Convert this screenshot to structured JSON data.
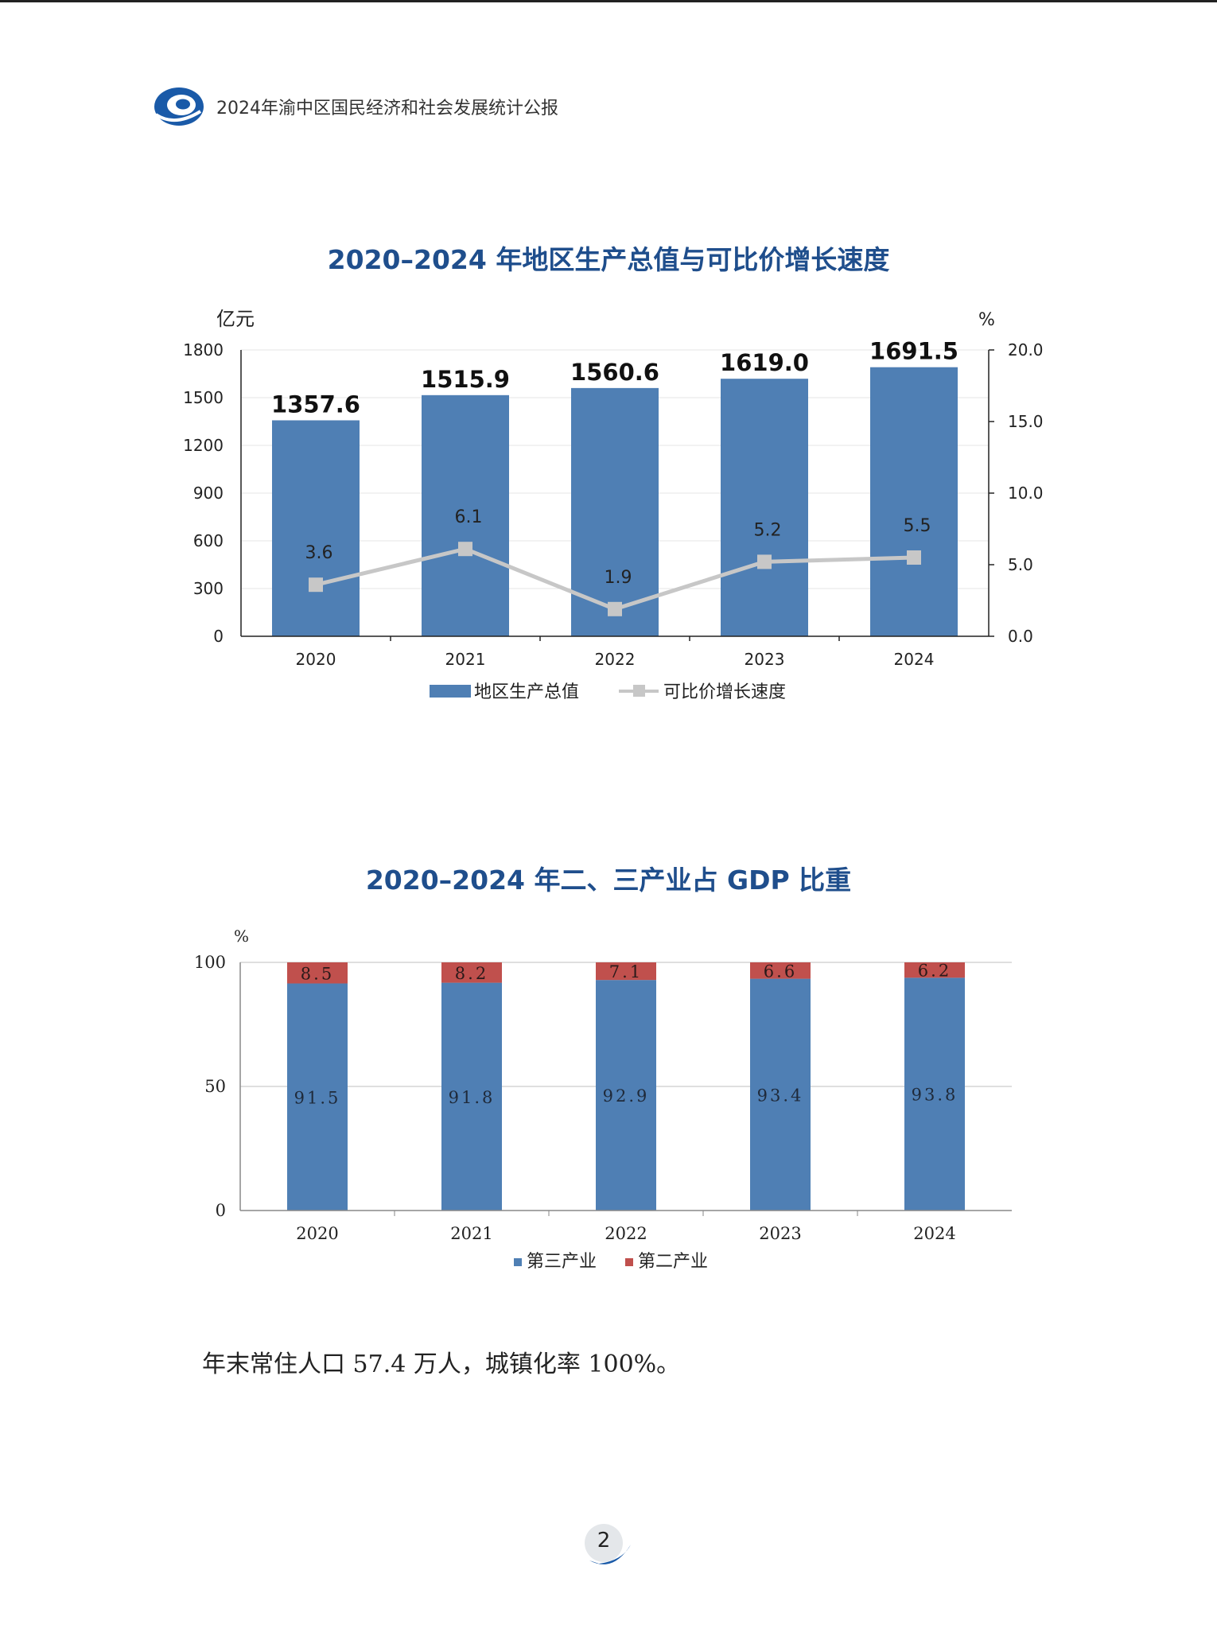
{
  "header": {
    "title": "2024年渝中区国民经济和社会发展统计公报"
  },
  "colors": {
    "bar_blue": "#4f7fb4",
    "line_gray": "#c7c7c7",
    "bar_red": "#c0504d",
    "title_blue": "#1f4e8c"
  },
  "chart_data": [
    {
      "type": "bar",
      "title": "2020–2024 年地区生产总值与可比价增长速度",
      "categories": [
        "2020",
        "2021",
        "2022",
        "2023",
        "2024"
      ],
      "ylabel": "亿元",
      "y2label": "%",
      "ylim": [
        0,
        1800
      ],
      "y2lim": [
        0,
        20
      ],
      "yticks": [
        "0",
        "300",
        "600",
        "900",
        "1200",
        "1500",
        "1800"
      ],
      "y2ticks": [
        "0.0",
        "5.0",
        "10.0",
        "15.0",
        "20.0"
      ],
      "series": [
        {
          "name": "地区生产总值",
          "type": "bar",
          "axis": "left",
          "values": [
            1357.6,
            1515.9,
            1560.6,
            1619.0,
            1691.5
          ],
          "labels": [
            "1357.6",
            "1515.9",
            "1560.6",
            "1619.0",
            "1691.5"
          ]
        },
        {
          "name": "可比价增长速度",
          "type": "line",
          "axis": "right",
          "values": [
            3.6,
            6.1,
            1.9,
            5.2,
            5.5
          ],
          "labels": [
            "3.6",
            "6.1",
            "1.9",
            "5.2",
            "5.5"
          ]
        }
      ],
      "legend": "bottom",
      "grid": true
    },
    {
      "type": "bar",
      "stacked": true,
      "title": "2020–2024 年二、三产业占 GDP 比重",
      "categories": [
        "2020",
        "2021",
        "2022",
        "2023",
        "2024"
      ],
      "ylabel": "%",
      "ylim": [
        0,
        100
      ],
      "yticks": [
        "0",
        "50",
        "100"
      ],
      "series": [
        {
          "name": "第三产业",
          "values": [
            91.5,
            91.8,
            92.9,
            93.4,
            93.8
          ],
          "labels": [
            "91.5",
            "91.8",
            "92.9",
            "93.4",
            "93.8"
          ]
        },
        {
          "name": "第二产业",
          "values": [
            8.5,
            8.2,
            7.1,
            6.6,
            6.2
          ],
          "labels": [
            "8.5",
            "8.2",
            "7.1",
            "6.6",
            "6.2"
          ]
        }
      ],
      "legend": "bottom",
      "grid": true
    }
  ],
  "body_text": "年末常住人口 57.4 万人，城镇化率 100%。",
  "page_number": "2"
}
